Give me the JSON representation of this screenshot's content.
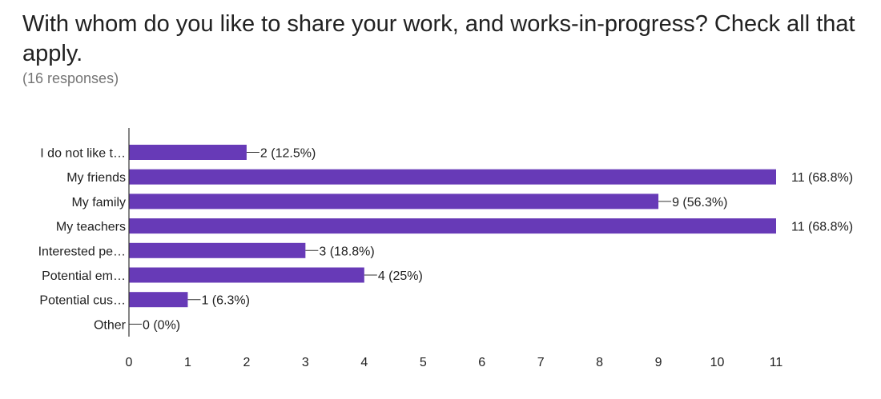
{
  "title": "With whom do you like to share your work, and works-in-progress? Check all that apply.",
  "subtitle": "(16 responses)",
  "colors": {
    "bar": "#673ab7",
    "axis": "#333333",
    "text": "#212121",
    "subtitle": "#757575"
  },
  "chart_data": {
    "type": "bar",
    "orientation": "horizontal",
    "categories": [
      "I do not like t…",
      "My friends",
      "My family",
      "My teachers",
      "Interested pe…",
      "Potential em…",
      "Potential cus…",
      "Other"
    ],
    "values": [
      2,
      11,
      9,
      11,
      3,
      4,
      1,
      0
    ],
    "data_labels": [
      "2 (12.5%)",
      "11 (68.8%)",
      "9 (56.3%)",
      "11 (68.8%)",
      "3 (18.8%)",
      "4 (25%)",
      "1 (6.3%)",
      "0 (0%)"
    ],
    "xlim": [
      0,
      11
    ],
    "x_ticks": [
      "0",
      "1",
      "2",
      "3",
      "4",
      "5",
      "6",
      "7",
      "8",
      "9",
      "10",
      "11"
    ],
    "xlabel": "",
    "ylabel": "",
    "grid": false,
    "legend": "none"
  }
}
